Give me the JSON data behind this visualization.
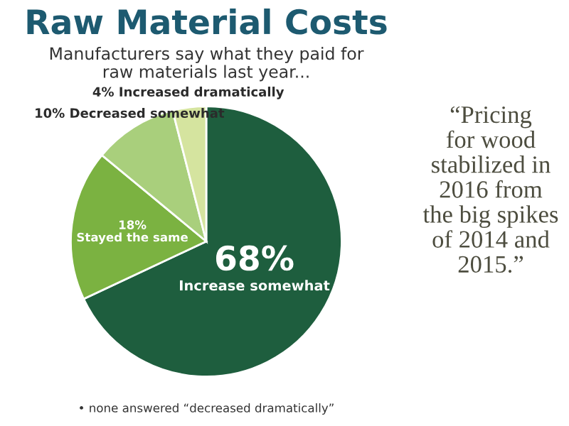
{
  "chart_data": {
    "type": "pie",
    "title": "Raw Material Costs",
    "subtitle": "Manufacturers say what they paid for\nraw materials last year...",
    "categories": [
      "Increase somewhat",
      "Stayed the same",
      "Decreased somewhat",
      "Increased dramatically"
    ],
    "values": [
      68,
      18,
      10,
      4
    ],
    "value_labels": [
      "68%",
      "18%",
      "10%",
      "4%"
    ],
    "colors": [
      "#1e5e3e",
      "#7bb241",
      "#a9cf7c",
      "#d5e49f"
    ],
    "annotations": [
      "“Pricing\nfor wood\nstabilized in\n2016 from\nthe big spikes\nof 2014 and\n2015.”",
      "• none answered “decreased dramatically”"
    ],
    "legend": false
  }
}
